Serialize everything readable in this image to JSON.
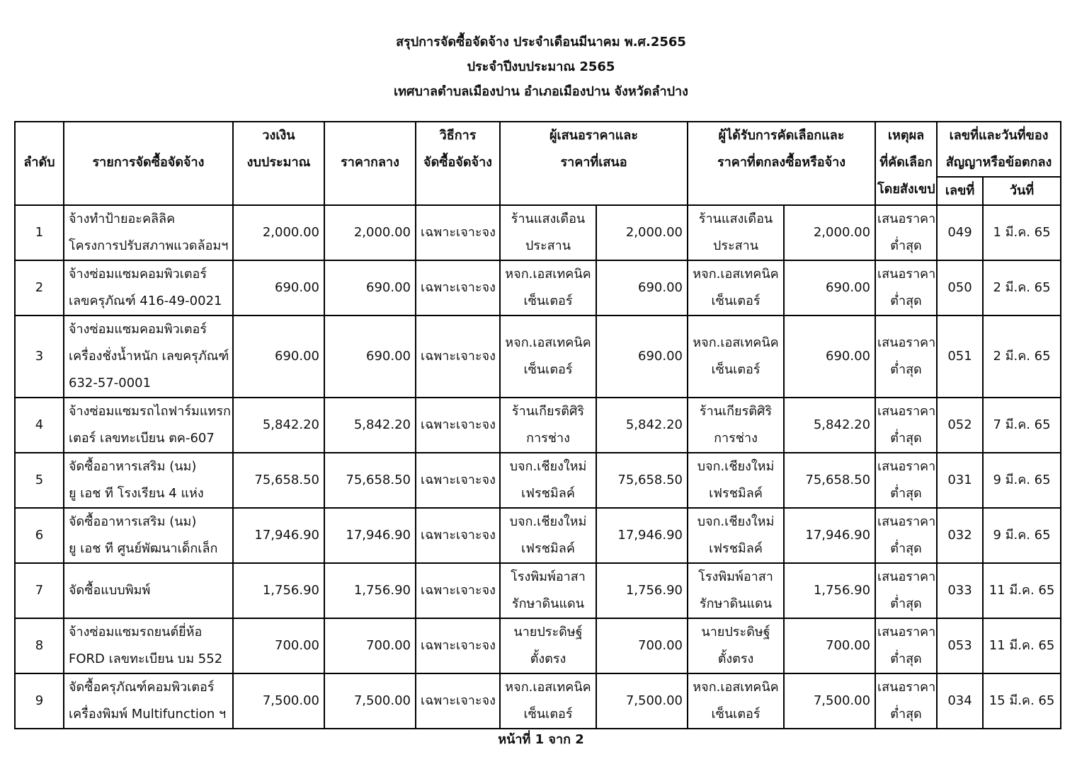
{
  "titles": [
    "สรุปการจัดซื้อจัดจ้าง ประจำเดือนมีนาคม พ.ศ.2565",
    "ประจำปีงบประมาณ 2565",
    "เทศบาลตำบลเมืองปาน อำเภอเมืองปาน จังหวัดลำปาง"
  ],
  "headers": {
    "no": "ลำดับ",
    "item": "รายการจัดซื้อจัดจ้าง",
    "budget": [
      "วงเงิน",
      "งบประมาณ"
    ],
    "median": "ราคากลาง",
    "method": [
      "วิธีการ",
      "จัดซื้อจัดจ้าง"
    ],
    "bidders": [
      "ผู้เสนอราคาและ",
      "ราคาที่เสนอ"
    ],
    "winner": [
      "ผู้ได้รับการคัดเลือกและ",
      "ราคาที่ตกลงซื้อหรือจ้าง"
    ],
    "reason": [
      "เหตุผล",
      "ที่คัดเลือก",
      "โดยสังเขป"
    ],
    "contract": [
      "เลขที่และวันที่ของ",
      "สัญญาหรือข้อตกลง"
    ],
    "contract_no": "เลขที่",
    "contract_date": "วันที่"
  },
  "rows": [
    {
      "no": "1",
      "item": [
        "จ้างทำป้ายอะคลิลิค",
        "โครงการปรับสภาพแวดล้อมฯ"
      ],
      "budget": "2,000.00",
      "median": "2,000.00",
      "method": "เฉพาะเจาะจง",
      "bidder": [
        "ร้านแสงเดือน",
        "ประสาน"
      ],
      "bid": "2,000.00",
      "winner": [
        "ร้านแสงเดือน",
        "ประสาน"
      ],
      "price": "2,000.00",
      "reason": [
        "เสนอราคา",
        "ต่ำสุด"
      ],
      "cno": "049",
      "cdate": "1 มี.ค. 65"
    },
    {
      "no": "2",
      "item": [
        "จ้างซ่อมแซมคอมพิวเตอร์",
        "เลขครุภัณฑ์ 416-49-0021"
      ],
      "budget": "690.00",
      "median": "690.00",
      "method": "เฉพาะเจาะจง",
      "bidder": [
        "หจก.เอสเทคนิค",
        "เซ็นเตอร์"
      ],
      "bid": "690.00",
      "winner": [
        "หจก.เอสเทคนิค",
        "เซ็นเตอร์"
      ],
      "price": "690.00",
      "reason": [
        "เสนอราคา",
        "ต่ำสุด"
      ],
      "cno": "050",
      "cdate": "2 มี.ค. 65"
    },
    {
      "no": "3",
      "item": [
        "จ้างซ่อมแซมคอมพิวเตอร์",
        "เครื่องชั่งน้ำหนัก เลขครุภัณฑ์",
        "632-57-0001"
      ],
      "budget": "690.00",
      "median": "690.00",
      "method": "เฉพาะเจาะจง",
      "bidder": [
        "หจก.เอสเทคนิค",
        "เซ็นเตอร์"
      ],
      "bid": "690.00",
      "winner": [
        "หจก.เอสเทคนิค",
        "เซ็นเตอร์"
      ],
      "price": "690.00",
      "reason": [
        "เสนอราคา",
        "ต่ำสุด"
      ],
      "cno": "051",
      "cdate": "2 มี.ค. 65"
    },
    {
      "no": "4",
      "item": [
        "จ้างซ่อมแซมรถไถฟาร์มแทรก",
        "เตอร์ เลขทะเบียน ตค-607"
      ],
      "budget": "5,842.20",
      "median": "5,842.20",
      "method": "เฉพาะเจาะจง",
      "bidder": [
        "ร้านเกียรติศิริ",
        "การช่าง"
      ],
      "bid": "5,842.20",
      "winner": [
        "ร้านเกียรติศิริ",
        "การช่าง"
      ],
      "price": "5,842.20",
      "reason": [
        "เสนอราคา",
        "ต่ำสุด"
      ],
      "cno": "052",
      "cdate": "7 มี.ค. 65"
    },
    {
      "no": "5",
      "item": [
        "จัดซื้ออาหารเสริม (นม)",
        "ยู เอช ที โรงเรียน 4 แห่ง"
      ],
      "budget": "75,658.50",
      "median": "75,658.50",
      "method": "เฉพาะเจาะจง",
      "bidder": [
        "บจก.เชียงใหม่",
        "เฟรชมิลค์"
      ],
      "bid": "75,658.50",
      "winner": [
        "บจก.เชียงใหม่",
        "เฟรชมิลค์"
      ],
      "price": "75,658.50",
      "reason": [
        "เสนอราคา",
        "ต่ำสุด"
      ],
      "cno": "031",
      "cdate": "9 มี.ค. 65"
    },
    {
      "no": "6",
      "item": [
        "จัดซื้ออาหารเสริม (นม)",
        "ยู เอช ที ศูนย์พัฒนาเด็กเล็ก"
      ],
      "budget": "17,946.90",
      "median": "17,946.90",
      "method": "เฉพาะเจาะจง",
      "bidder": [
        "บจก.เชียงใหม่",
        "เฟรชมิลค์"
      ],
      "bid": "17,946.90",
      "winner": [
        "บจก.เชียงใหม่",
        "เฟรชมิลค์"
      ],
      "price": "17,946.90",
      "reason": [
        "เสนอราคา",
        "ต่ำสุด"
      ],
      "cno": "032",
      "cdate": "9 มี.ค. 65"
    },
    {
      "no": "7",
      "item": [
        "จัดซื้อแบบพิมพ์"
      ],
      "budget": "1,756.90",
      "median": "1,756.90",
      "method": "เฉพาะเจาะจง",
      "bidder": [
        "โรงพิมพ์อาสา",
        "รักษาดินแดน"
      ],
      "bid": "1,756.90",
      "winner": [
        "โรงพิมพ์อาสา",
        "รักษาดินแดน"
      ],
      "price": "1,756.90",
      "reason": [
        "เสนอราคา",
        "ต่ำสุด"
      ],
      "cno": "033",
      "cdate": "11 มี.ค. 65"
    },
    {
      "no": "8",
      "item": [
        "จ้างซ่อมแซมรถยนต์ยี่ห้อ",
        "FORD เลขทะเบียน บม 552"
      ],
      "budget": "700.00",
      "median": "700.00",
      "method": "เฉพาะเจาะจง",
      "bidder": [
        "นายประดิษฐ์",
        "ตั้งตรง"
      ],
      "bid": "700.00",
      "winner": [
        "นายประดิษฐ์",
        "ตั้งตรง"
      ],
      "price": "700.00",
      "reason": [
        "เสนอราคา",
        "ต่ำสุด"
      ],
      "cno": "053",
      "cdate": "11 มี.ค. 65"
    },
    {
      "no": "9",
      "item": [
        "จัดซื้อครุภัณฑ์คอมพิวเตอร์",
        "เครื่องพิมพ์ Multifunction ฯ"
      ],
      "budget": "7,500.00",
      "median": "7,500.00",
      "method": "เฉพาะเจาะจง",
      "bidder": [
        "หจก.เอสเทคนิค",
        "เซ็นเตอร์"
      ],
      "bid": "7,500.00",
      "winner": [
        "หจก.เอสเทคนิค",
        "เซ็นเตอร์"
      ],
      "price": "7,500.00",
      "reason": [
        "เสนอราคา",
        "ต่ำสุด"
      ],
      "cno": "034",
      "cdate": "15 มี.ค. 65"
    }
  ],
  "footer": "หน้าที่ 1 จาก 2"
}
